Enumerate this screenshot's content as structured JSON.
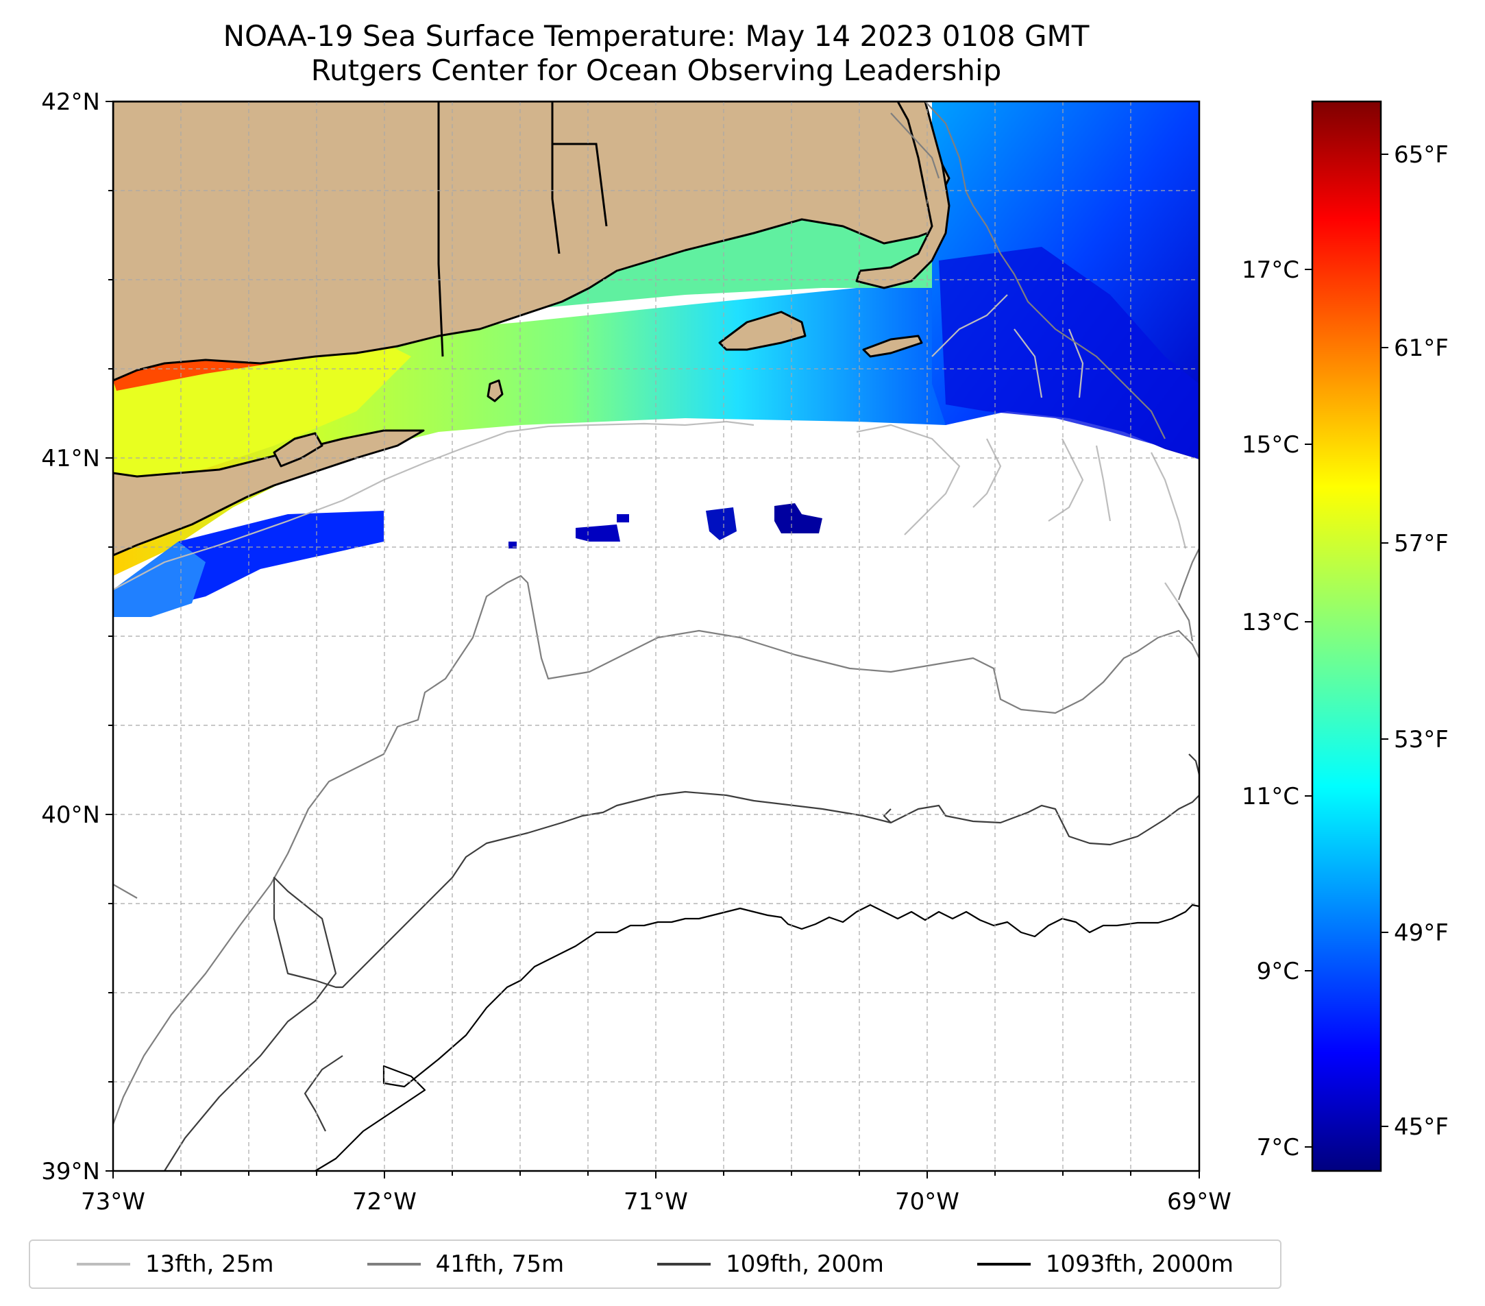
{
  "title": {
    "line1": "NOAA-19 Sea Surface Temperature: May 14 2023 0108 GMT",
    "line2": "Rutgers Center for Ocean Observing Leadership"
  },
  "map": {
    "lon_range": [
      -73,
      -69
    ],
    "lat_range": [
      39,
      42
    ],
    "lat_ticks": [
      "42°N",
      "41°N",
      "40°N",
      "39°N"
    ],
    "lon_ticks": [
      "73°W",
      "72°W",
      "71°W",
      "70°W",
      "69°W"
    ],
    "land_color": "#d2b48c",
    "grid": "dashed gray, every 0.25°"
  },
  "colorbar": {
    "colormap": "jet",
    "celsius_ticks": [
      "17°C",
      "15°C",
      "13°C",
      "11°C",
      "9°C",
      "7°C"
    ],
    "fahrenheit_ticks": [
      "65°F",
      "61°F",
      "57°F",
      "53°F",
      "49°F",
      "45°F"
    ],
    "colors": [
      "#7f0000",
      "#ff0000",
      "#ff8000",
      "#ffff00",
      "#80ff80",
      "#00ffff",
      "#0080ff",
      "#0000ff",
      "#00007f"
    ]
  },
  "legend": {
    "items": [
      {
        "label": "13fth, 25m",
        "color": "#bdbdbd"
      },
      {
        "label": "41fth, 75m",
        "color": "#7f7f7f"
      },
      {
        "label": "109fth, 200m",
        "color": "#3d3d3d"
      },
      {
        "label": "1093fth, 2000m",
        "color": "#000000"
      }
    ]
  }
}
